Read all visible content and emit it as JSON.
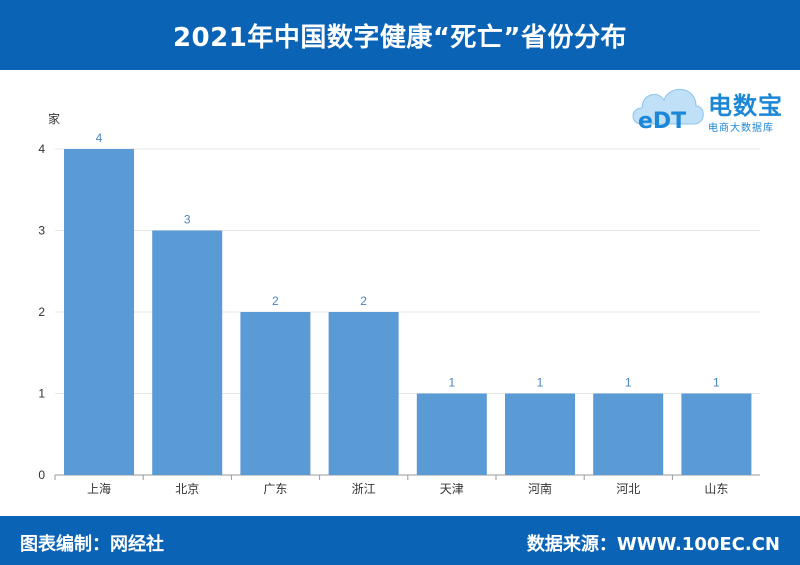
{
  "header": {
    "title": "2021年中国数字健康“死亡”省份分布"
  },
  "footer": {
    "editor": "图表编制：网经社",
    "source": "数据来源：WWW.100EC.CN"
  },
  "logo": {
    "text": "eDT",
    "brand": "电数宝",
    "sub": "电商大数据库",
    "icon": "cloud-logo-icon"
  },
  "colors": {
    "header": "#0b63b6",
    "bar": "#5b9bd5",
    "data_label": "#4a86c0",
    "logo": "#1b87d6"
  },
  "chart_data": {
    "type": "bar",
    "title": "2021年中国数字健康“死亡”省份分布",
    "xlabel": "",
    "ylabel": "家",
    "categories": [
      "上海",
      "北京",
      "广东",
      "浙江",
      "天津",
      "河南",
      "河北",
      "山东"
    ],
    "values": [
      4,
      3,
      2,
      2,
      1,
      1,
      1,
      1
    ],
    "ylim": [
      0,
      4
    ],
    "yticks": [
      0,
      1,
      2,
      3,
      4
    ],
    "grid": true,
    "legend": "none"
  }
}
